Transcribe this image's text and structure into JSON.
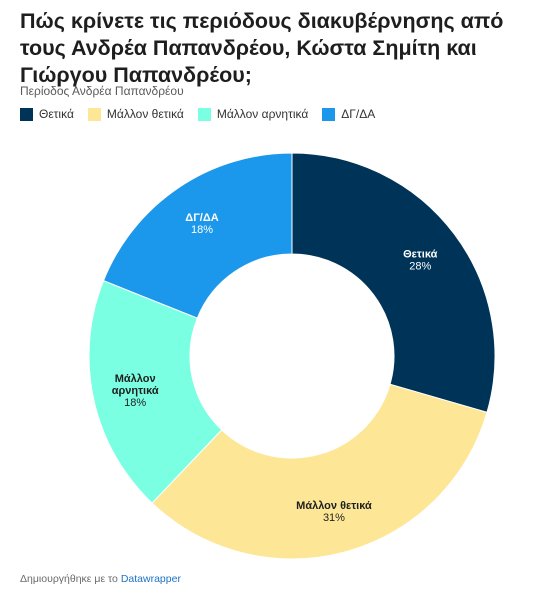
{
  "header": {
    "title": "Πώς κρίνετε τις περιόδους διακυβέρνησης από τους Ανδρέα Παπανδρέου, Κώστα Σημίτη και Γιώργου Παπανδρέου;",
    "subtitle": "Περίοδος Ανδρέα Παπανδρέου"
  },
  "legend": [
    {
      "label": "Θετικά",
      "color": "#003358"
    },
    {
      "label": "Μάλλον θετικά",
      "color": "#fde797"
    },
    {
      "label": "Μάλλον αρνητικά",
      "color": "#7affe3"
    },
    {
      "label": "ΔΓ/ΔΑ",
      "color": "#1b98ec"
    }
  ],
  "chart_data": {
    "type": "pie",
    "variant": "donut",
    "slices": [
      {
        "label": "Θετικά",
        "value": 28,
        "display": "28%",
        "color": "#003358",
        "text_color": "#ffffff"
      },
      {
        "label": "Μάλλον θετικά",
        "value": 31,
        "display": "31%",
        "color": "#fde797",
        "text_color": "#1e1e1e"
      },
      {
        "label": "Μάλλον αρνητικά",
        "value": 18,
        "display": "18%",
        "color": "#7affe3",
        "text_color": "#1e1e1e"
      },
      {
        "label": "ΔΓ/ΔΑ",
        "value": 18,
        "display": "18%",
        "color": "#1b98ec",
        "text_color": "#ffffff"
      }
    ],
    "start": "top",
    "direction": "clockwise"
  },
  "footer": {
    "prefix": "Δημιουργήθηκε με το",
    "link": "Datawrapper"
  }
}
